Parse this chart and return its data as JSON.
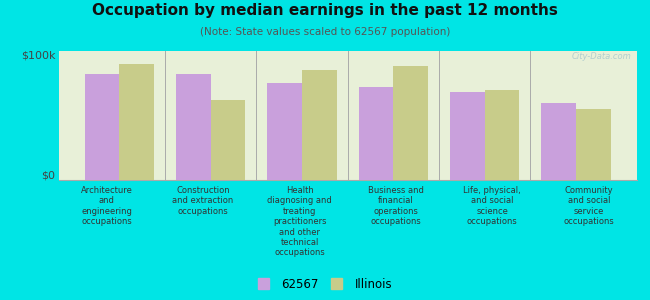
{
  "title": "Occupation by median earnings in the past 12 months",
  "subtitle": "(Note: State values scaled to 62567 population)",
  "categories": [
    "Architecture\nand\nengineering\noccupations",
    "Construction\nand extraction\noccupations",
    "Health\ndiagnosing and\ntreating\npractitioners\nand other\ntechnical\noccupations",
    "Business and\nfinancial\noperations\noccupations",
    "Life, physical,\nand social\nscience\noccupations",
    "Community\nand social\nservice\noccupations"
  ],
  "values_62567": [
    82000,
    82000,
    75000,
    72000,
    68000,
    60000
  ],
  "values_illinois": [
    90000,
    62000,
    85000,
    88000,
    70000,
    55000
  ],
  "color_62567": "#c9a0dc",
  "color_illinois": "#c8cc8a",
  "background_color": "#00e5e5",
  "plot_bg_color": "#e8f0d8",
  "ylim": [
    0,
    100000
  ],
  "ytick_labels": [
    "$0",
    "$100k"
  ],
  "legend_label_62567": "62567",
  "legend_label_illinois": "Illinois",
  "watermark": "City-Data.com"
}
